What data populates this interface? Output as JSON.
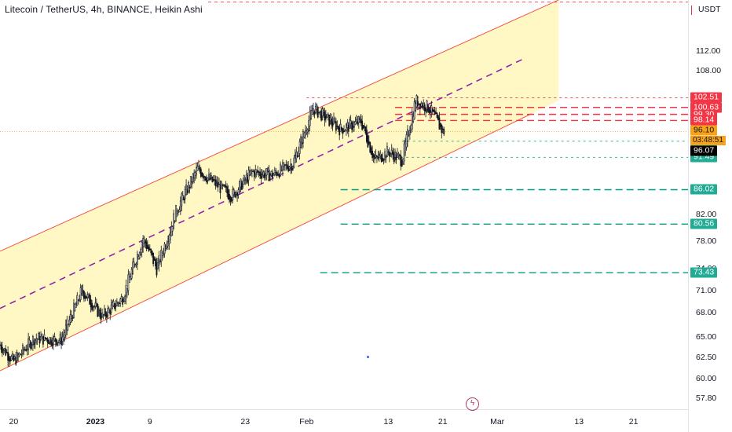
{
  "chart_data": {
    "type": "candlestick",
    "title": "Litecoin / TetherUS, 4h, BINANCE, Heikin Ashi",
    "unit": "USDT",
    "y_axis": {
      "scale": "log",
      "ylim": [
        56.6,
        123.5
      ],
      "ticks": [
        "112.00",
        "108.00",
        "82.00",
        "78.00",
        "74.00",
        "71.00",
        "68.00",
        "65.00",
        "62.50",
        "60.00",
        "57.80"
      ]
    },
    "x_axis": {
      "ticks": [
        "20",
        "2023",
        "9",
        "23",
        "Feb",
        "13",
        "21",
        "Mar",
        "13",
        "21"
      ],
      "xlim_dates": [
        "2022-12-18",
        "2023-03-29"
      ]
    },
    "approx_close_path": [
      {
        "date": "2022-12-18",
        "close": 64.0
      },
      {
        "date": "2022-12-20",
        "close": 62.0
      },
      {
        "date": "2022-12-23",
        "close": 64.8
      },
      {
        "date": "2022-12-27",
        "close": 64.6
      },
      {
        "date": "2022-12-30",
        "close": 71.0
      },
      {
        "date": "2023-01-02",
        "close": 67.5
      },
      {
        "date": "2023-01-05",
        "close": 70.0
      },
      {
        "date": "2023-01-08",
        "close": 78.5
      },
      {
        "date": "2023-01-10",
        "close": 74.0
      },
      {
        "date": "2023-01-13",
        "close": 83.0
      },
      {
        "date": "2023-01-16",
        "close": 89.5
      },
      {
        "date": "2023-01-18",
        "close": 87.5
      },
      {
        "date": "2023-01-21",
        "close": 85.0
      },
      {
        "date": "2023-01-24",
        "close": 89.0
      },
      {
        "date": "2023-01-27",
        "close": 88.5
      },
      {
        "date": "2023-01-30",
        "close": 90.5
      },
      {
        "date": "2023-02-02",
        "close": 100.5
      },
      {
        "date": "2023-02-06",
        "close": 96.5
      },
      {
        "date": "2023-02-09",
        "close": 98.0
      },
      {
        "date": "2023-02-11",
        "close": 91.0
      },
      {
        "date": "2023-02-13",
        "close": 92.5
      },
      {
        "date": "2023-02-15",
        "close": 91.0
      },
      {
        "date": "2023-02-17",
        "close": 102.0
      },
      {
        "date": "2023-02-19",
        "close": 100.5
      },
      {
        "date": "2023-02-21",
        "close": 96.1
      }
    ],
    "channel": {
      "upper": [
        {
          "date": "2022-12-18",
          "price": 76.5
        },
        {
          "date": "2023-03-10",
          "price": 123.5
        }
      ],
      "middle": [
        {
          "date": "2022-12-18",
          "price": 68.6
        },
        {
          "date": "2023-03-05",
          "price": 110.5
        }
      ],
      "lower": [
        {
          "date": "2022-12-18",
          "price": 60.9
        },
        {
          "date": "2023-03-06",
          "price": 99.4
        }
      ],
      "fill": "#fff8c5",
      "edge_color": "#f44336",
      "mid_color": "#8e24aa"
    },
    "levels": [
      {
        "label": "102.51",
        "price": 102.51,
        "kind": "resistance",
        "color": "#f23645",
        "from_date": "2023-02-01",
        "style": "dotted"
      },
      {
        "label": "100.63",
        "price": 100.63,
        "kind": "resistance",
        "color": "#f23645",
        "from_date": "2023-02-14",
        "style": "dashed"
      },
      {
        "label": "99.30",
        "price": 99.3,
        "kind": "resistance",
        "color": "#f23645",
        "from_date": "2023-02-14",
        "style": "dashed"
      },
      {
        "label": "98.14",
        "price": 98.14,
        "kind": "resistance",
        "color": "#f23645",
        "from_date": "2023-02-14",
        "style": "dashed"
      },
      {
        "label": "94.35",
        "price": 94.35,
        "kind": "support",
        "color": "#22ab94",
        "from_date": "2023-02-15",
        "style": "dotted"
      },
      {
        "label": "91.49",
        "price": 91.49,
        "kind": "support",
        "color": "#22ab94",
        "from_date": "2023-02-14",
        "style": "dotted"
      },
      {
        "label": "86.02",
        "price": 86.02,
        "kind": "support",
        "color": "#089981",
        "from_date": "2023-02-06",
        "style": "dashed"
      },
      {
        "label": "80.56",
        "price": 80.56,
        "kind": "support",
        "color": "#089981",
        "from_date": "2023-02-06",
        "style": "dashed"
      },
      {
        "label": "73.43",
        "price": 73.43,
        "kind": "support",
        "color": "#089981",
        "from_date": "2023-02-03",
        "style": "dashed"
      }
    ],
    "top_alert_line": {
      "price": 123.0,
      "color": "#f23645"
    },
    "last_price": {
      "label": "96.10",
      "value": 96.1,
      "countdown": "03:48:51",
      "color": "#f7a21b"
    },
    "crosshair_price": {
      "label": "96.07",
      "value": 96.07
    },
    "colors": {
      "candle": "#131722",
      "tag_red": "#f23645",
      "tag_green": "#22ab94",
      "tag_dark": "#000000"
    }
  }
}
